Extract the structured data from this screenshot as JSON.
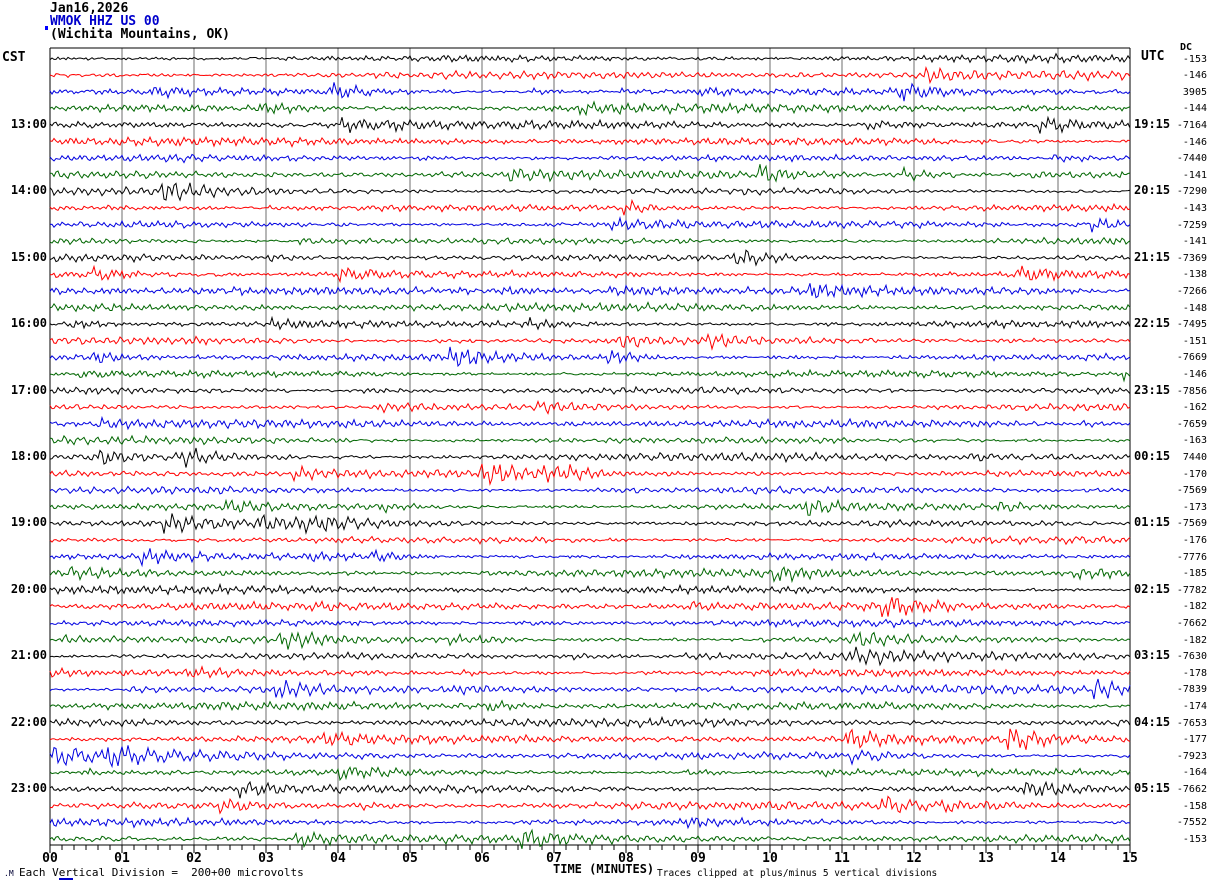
{
  "header": {
    "date": "Jan16,2026",
    "station": "WMOK HHZ US 00",
    "location": "(Wichita Mountains, OK)"
  },
  "axes": {
    "left_label": "CST",
    "right_label": "UTC",
    "dc_label": "DC",
    "x_title": "TIME (MINUTES)"
  },
  "footer": {
    "mark": ".M",
    "scale_note": "Each Vertical Division =  200+00 microvolts",
    "clip_note": "Traces clipped at plus/minus 5 vertical divisions"
  },
  "chart_data": {
    "type": "line",
    "subtype": "helicorder-seismogram",
    "title": "WMOK HHZ US 00 (Wichita Mountains, OK) Jan16,2026",
    "xlabel": "TIME (MINUTES)",
    "x_ticks": [
      "00",
      "01",
      "02",
      "03",
      "04",
      "05",
      "06",
      "07",
      "08",
      "09",
      "10",
      "11",
      "12",
      "13",
      "14",
      "15"
    ],
    "x_range_minutes": [
      0,
      15
    ],
    "minutes_per_row": 15,
    "num_rows": 48,
    "minor_ticks_per_minute": 5,
    "grid": "vertical gray gridline at every minute",
    "row_color_cycle": [
      "#000000",
      "#ff0000",
      "#0000e0",
      "#006600"
    ],
    "left_axis": "CST",
    "left_tick_labels": [
      "13:00",
      "14:00",
      "15:00",
      "16:00",
      "17:00",
      "18:00",
      "19:00",
      "20:00",
      "21:00",
      "22:00",
      "23:00"
    ],
    "right_axis": "UTC",
    "right_tick_labels": [
      "19:15",
      "20:15",
      "21:15",
      "22:15",
      "23:15",
      "00:15",
      "01:15",
      "02:15",
      "03:15",
      "04:15",
      "05:15"
    ],
    "dc_column_header": "DC",
    "dc_offsets": [
      "-153",
      "-146",
      "3905",
      "-144",
      "-7164",
      "-146",
      "-7440",
      "-141",
      "-7290",
      "-143",
      "-7259",
      "-141",
      "-7369",
      "-138",
      "-7266",
      "-148",
      "-7495",
      "-151",
      "-7669",
      "-146",
      "-7856",
      "-162",
      "-7659",
      "-163",
      "7440",
      "-170",
      "-7569",
      "-173",
      "-7569",
      "-176",
      "-7776",
      "-185",
      "-7782",
      "-182",
      "-7662",
      "-182",
      "-7630",
      "-178",
      "-7839",
      "-174",
      "-7653",
      "-177",
      "-7923",
      "-164",
      "-7662",
      "-158",
      "-7552",
      "-153"
    ],
    "scale_note": "Each Vertical Division =  200+00 microvolts",
    "clip_note": "Traces clipped at plus/minus 5 vertical divisions",
    "grid_color": "#6e6e6e",
    "station_color": "#0000cc"
  }
}
